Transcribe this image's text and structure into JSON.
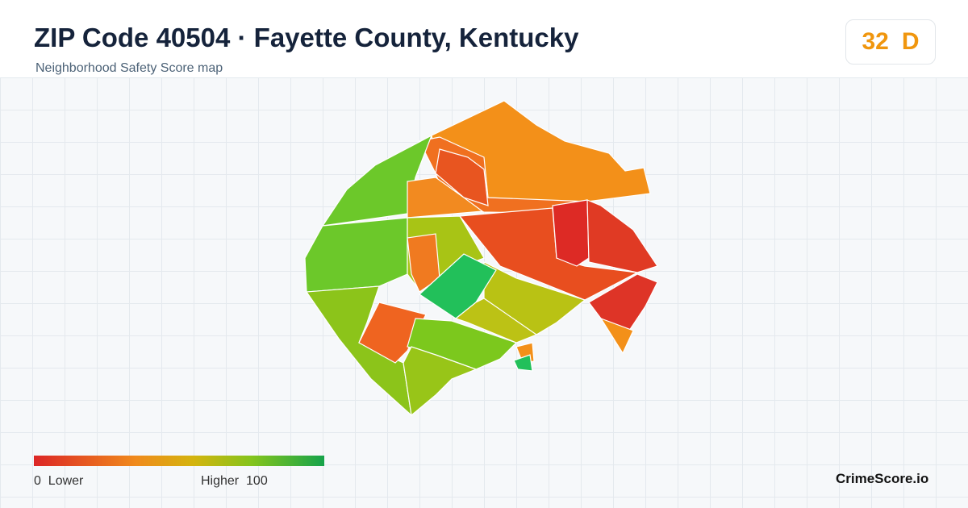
{
  "header": {
    "title": "ZIP Code 40504 · Fayette County, Kentucky",
    "subtitle": "Neighborhood Safety Score map"
  },
  "score": {
    "value": 32,
    "grade": "D"
  },
  "legend": {
    "min": 0,
    "min_label": "Lower",
    "max_label": "Higher",
    "max": 100
  },
  "footer": {
    "brand": "CrimeScore.io"
  }
}
